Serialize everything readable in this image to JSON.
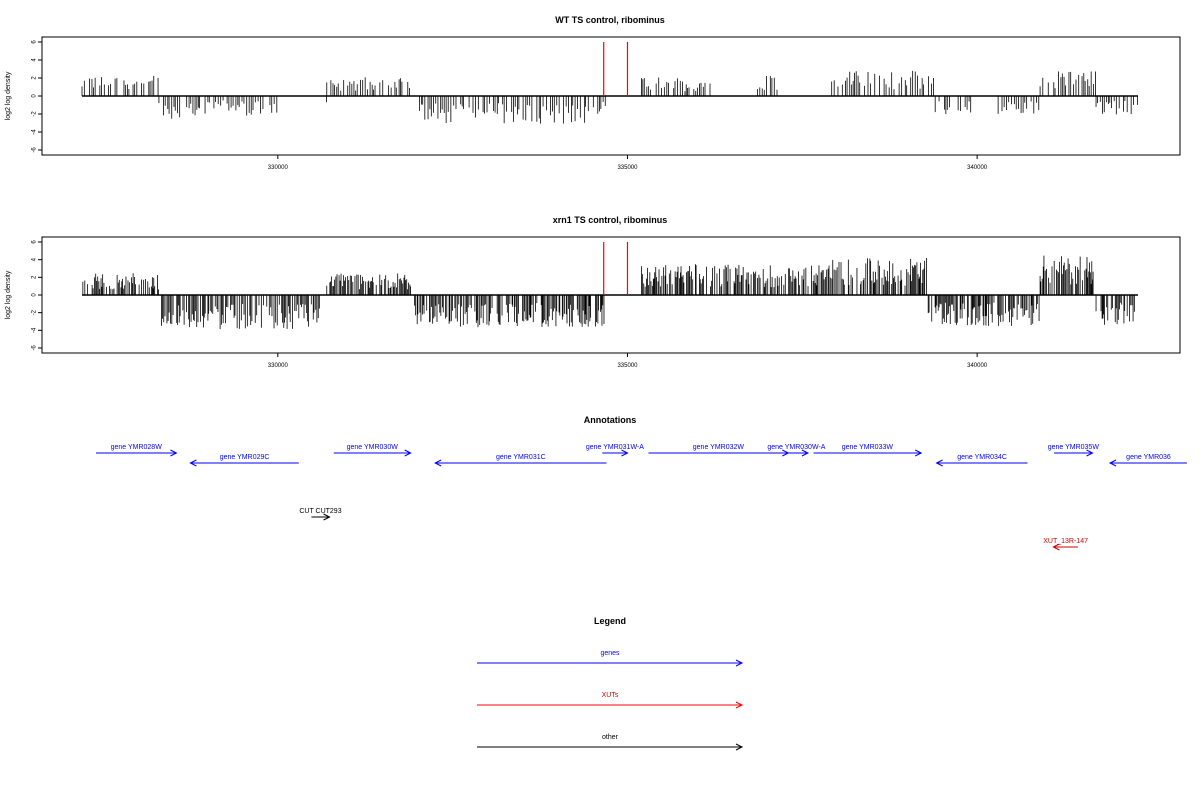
{
  "chart_data": [
    {
      "type": "bar",
      "title": "WT TS control, ribominus",
      "ylabel": "log2 log density",
      "ylim": [
        -6,
        6
      ],
      "yticks": [
        6,
        4,
        2,
        0,
        -2,
        -4,
        -6
      ],
      "xlim": [
        327000,
        342500
      ],
      "xticks": [
        330000,
        335000,
        340000
      ],
      "xtick_labels": [
        "330000",
        "335000",
        "340000"
      ],
      "highlight_lines": {
        "color": "#ff0000",
        "x": [
          334660,
          335000
        ],
        "height": 6
      },
      "profile": {
        "tick_interval": 30,
        "note": "dense strand-specific read density; positive = forward strand, negative = reverse strand",
        "segments": [
          {
            "start": 327200,
            "end": 328300,
            "value": 1.6
          },
          {
            "start": 328300,
            "end": 329000,
            "value": -1.8
          },
          {
            "start": 329000,
            "end": 329300,
            "value": -1.0
          },
          {
            "start": 329300,
            "end": 330000,
            "value": -1.6
          },
          {
            "start": 330650,
            "end": 330700,
            "value": -0.8
          },
          {
            "start": 330700,
            "end": 331900,
            "value": 1.5
          },
          {
            "start": 332000,
            "end": 334400,
            "value": -2.2
          },
          {
            "start": 334400,
            "end": 334700,
            "value": -1.5
          },
          {
            "start": 335200,
            "end": 336200,
            "value": 1.5
          },
          {
            "start": 336700,
            "end": 337200,
            "value": 1.8
          },
          {
            "start": 337300,
            "end": 337350,
            "value": -1.5
          },
          {
            "start": 337900,
            "end": 339400,
            "value": 2.0
          },
          {
            "start": 339400,
            "end": 340000,
            "value": -1.5
          },
          {
            "start": 340300,
            "end": 340900,
            "value": -1.6
          },
          {
            "start": 340900,
            "end": 341700,
            "value": 2.0
          },
          {
            "start": 341700,
            "end": 342300,
            "value": -1.5
          }
        ]
      }
    },
    {
      "type": "bar",
      "title": "xrn1 TS control, ribominus",
      "ylabel": "log2 log density",
      "ylim": [
        -6,
        6
      ],
      "yticks": [
        6,
        4,
        2,
        0,
        -2,
        -4,
        -6
      ],
      "xlim": [
        327000,
        342500
      ],
      "xticks": [
        330000,
        335000,
        340000
      ],
      "xtick_labels": [
        "330000",
        "335000",
        "340000"
      ],
      "highlight_lines": {
        "color": "#ff0000",
        "x": [
          334660,
          335000
        ],
        "height": 6
      },
      "profile": {
        "tick_interval": 15,
        "note": "dense strand-specific read density; positive = forward strand, negative = reverse strand",
        "segments": [
          {
            "start": 327200,
            "end": 328300,
            "value": 1.8
          },
          {
            "start": 328300,
            "end": 330600,
            "value": -2.8
          },
          {
            "start": 330700,
            "end": 331900,
            "value": 1.8
          },
          {
            "start": 331900,
            "end": 334700,
            "value": -2.6
          },
          {
            "start": 335200,
            "end": 337900,
            "value": 2.5
          },
          {
            "start": 337900,
            "end": 339300,
            "value": 3.0
          },
          {
            "start": 339300,
            "end": 340900,
            "value": -2.5
          },
          {
            "start": 340900,
            "end": 341700,
            "value": 3.2
          },
          {
            "start": 341700,
            "end": 342300,
            "value": -2.5
          }
        ]
      }
    }
  ],
  "annotations": {
    "title": "Annotations",
    "features": [
      {
        "label": "gene YMR028W",
        "strand": "+",
        "color": "#0000ff",
        "row": 0,
        "start": 327400,
        "end": 328550
      },
      {
        "label": "gene YMR029C",
        "strand": "-",
        "color": "#0000ff",
        "row": 1,
        "start": 328750,
        "end": 330300
      },
      {
        "label": "gene YMR030W",
        "strand": "+",
        "color": "#0000ff",
        "row": 0,
        "start": 330800,
        "end": 331900
      },
      {
        "label": "gene YMR031C",
        "strand": "-",
        "color": "#0000ff",
        "row": 1,
        "start": 332250,
        "end": 334700
      },
      {
        "label": "gene YMR031W-A",
        "strand": "+",
        "color": "#0000ff",
        "row": 0,
        "start": 334640,
        "end": 335000
      },
      {
        "label": "gene YMR032W",
        "strand": "+",
        "color": "#0000ff",
        "row": 0,
        "start": 335300,
        "end": 337300
      },
      {
        "label": "gene YMR030W-A",
        "strand": "+",
        "color": "#0000ff",
        "row": 0,
        "start": 337250,
        "end": 337580
      },
      {
        "label": "gene YMR033W",
        "strand": "+",
        "color": "#0000ff",
        "row": 0,
        "start": 337660,
        "end": 339200
      },
      {
        "label": "gene YMR034C",
        "strand": "-",
        "color": "#0000ff",
        "row": 1,
        "start": 339420,
        "end": 340720
      },
      {
        "label": "gene YMR035W",
        "strand": "+",
        "color": "#0000ff",
        "row": 0,
        "start": 341100,
        "end": 341650
      },
      {
        "label": "gene YMR036",
        "strand": "-",
        "color": "#0000ff",
        "row": 1,
        "start": 341900,
        "end": 343000
      },
      {
        "label": "CUT CUT293",
        "strand": "+",
        "color": "#000000",
        "row": 2,
        "start": 330480,
        "end": 330740
      },
      {
        "label": "XUT_13R-147",
        "strand": "-",
        "color": "#cc0000",
        "row": 3,
        "start": 341090,
        "end": 341440
      }
    ]
  },
  "legend": {
    "title": "Legend",
    "items": [
      {
        "label": "genes",
        "color": "#0000ff"
      },
      {
        "label": "XUTs",
        "color": "#ff0000"
      },
      {
        "label": "other",
        "color": "#000000"
      }
    ]
  }
}
